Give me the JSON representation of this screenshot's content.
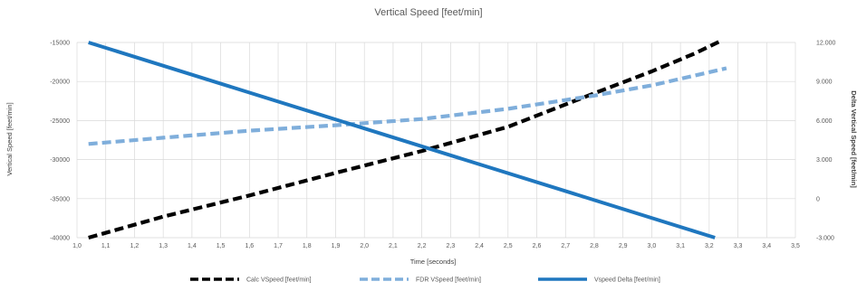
{
  "chart_data": {
    "type": "line",
    "title": "Vertical Speed [feet/min]",
    "xlabel": "Time [seconds]",
    "ylabel": "Vertical Speed [feet/min]",
    "y2label": "Delta Vertical Speed [feet/min]",
    "xlim": [
      1.0,
      3.5
    ],
    "ylim": [
      -40000,
      -15000
    ],
    "y2lim": [
      -3000,
      12000
    ],
    "xticks": [
      "1,0",
      "1,1",
      "1,2",
      "1,3",
      "1,4",
      "1,5",
      "1,6",
      "1,7",
      "1,8",
      "1,9",
      "2,0",
      "2,1",
      "2,2",
      "2,3",
      "2,4",
      "2,5",
      "2,6",
      "2,7",
      "2,8",
      "2,9",
      "3,0",
      "3,1",
      "3,2",
      "3,3",
      "3,4",
      "3,5"
    ],
    "yticks": [
      "-40000",
      "-35000",
      "-30000",
      "-25000",
      "-20000",
      "-15000"
    ],
    "y2ticks": [
      "-3.000",
      "0",
      "3.000",
      "6.000",
      "9.000",
      "12.000"
    ],
    "grid": true,
    "legend_position": "bottom",
    "series": [
      {
        "name": "Calc VSpeed [feet/min]",
        "axis": "left",
        "color": "#000000",
        "style": "dashed",
        "x": [
          1.04,
          1.3,
          1.6,
          1.9,
          2.2,
          2.5,
          2.8,
          3.0,
          3.15,
          3.24
        ],
        "y": [
          -40000,
          -37300,
          -34600,
          -31700,
          -28900,
          -25800,
          -21500,
          -18700,
          -16400,
          -14800
        ]
      },
      {
        "name": "FDR VSpeed [feet/min]",
        "axis": "left",
        "color": "#7faedb",
        "style": "dashed",
        "x": [
          1.04,
          1.3,
          1.6,
          1.9,
          2.2,
          2.5,
          2.8,
          3.0,
          3.26
        ],
        "y": [
          -28000,
          -27200,
          -26300,
          -25600,
          -24800,
          -23500,
          -21800,
          -20500,
          -18300
        ]
      },
      {
        "name": "Vspeed Delta [feet/min]",
        "axis": "right",
        "color": "#1f77bf",
        "style": "solid",
        "x": [
          1.04,
          3.22
        ],
        "y": [
          12000,
          -3000
        ]
      }
    ]
  }
}
